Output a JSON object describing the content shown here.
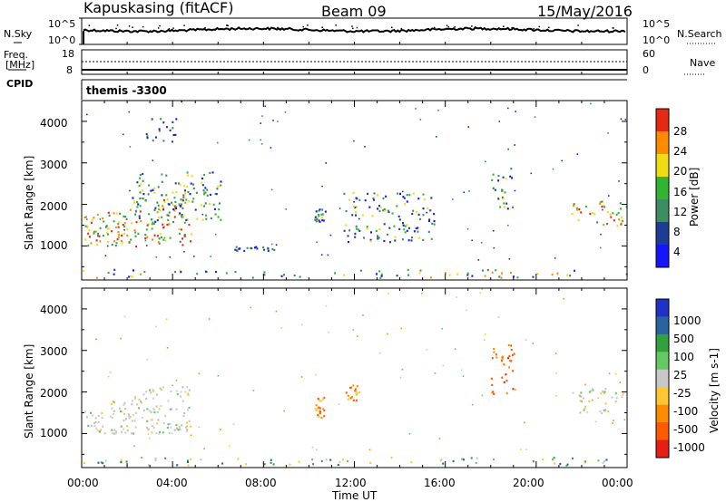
{
  "header": {
    "radar": "Kapuskasing (fitACF)",
    "beam": "Beam 09",
    "date": "15/May/2016"
  },
  "noise_panel": {
    "left_label": "N.Sky",
    "top_tick": "10^5",
    "bottom_tick": "10^0",
    "right_label": "N.Search"
  },
  "freq_panel": {
    "left_label_1": "Freq.",
    "left_label_2": "[MHz]",
    "left_top_tick": "18",
    "left_bottom_tick": "8",
    "right_label": "Nave",
    "right_top_tick": "60",
    "right_bottom_tick": "0"
  },
  "cpid": {
    "label": "CPID",
    "value": "themis -3300"
  },
  "chart_data": [
    {
      "type": "heatmap",
      "quantity": "Power",
      "ylabel": "Slant Range [km]",
      "ylim": [
        180,
        4500
      ],
      "yticks": [
        1000,
        2000,
        3000,
        4000
      ],
      "xlim_hours": [
        0,
        24
      ],
      "colorbar_label": "Power [dB]",
      "colorbar_ticks": [
        "4",
        "8",
        "12",
        "16",
        "20",
        "24",
        "28"
      ],
      "colorbar_colors": [
        "#1414ff",
        "#1e3c96",
        "#3c8c64",
        "#32b432",
        "#f0dc14",
        "#ff8c00",
        "#e62814"
      ],
      "echo_regions": [
        {
          "t": [
            0.1,
            4.8
          ],
          "r": [
            1000,
            2300
          ],
          "level": "strong"
        },
        {
          "t": [
            2.2,
            6.2
          ],
          "r": [
            1600,
            2800
          ],
          "level": "medium"
        },
        {
          "t": [
            2.8,
            4.2
          ],
          "r": [
            3500,
            4100
          ],
          "level": "weak"
        },
        {
          "t": [
            6.5,
            8.5
          ],
          "r": [
            900,
            1000
          ],
          "level": "weak"
        },
        {
          "t": [
            10.2,
            10.7
          ],
          "r": [
            1600,
            1900
          ],
          "level": "medium"
        },
        {
          "t": [
            11.5,
            15.5
          ],
          "r": [
            1100,
            2300
          ],
          "level": "medium"
        },
        {
          "t": [
            18.0,
            19.0
          ],
          "r": [
            1900,
            2900
          ],
          "level": "medium"
        },
        {
          "t": [
            21.5,
            24.0
          ],
          "r": [
            1500,
            2100
          ],
          "level": "strong"
        },
        {
          "t": [
            0.0,
            24.0
          ],
          "r": [
            250,
            450
          ],
          "level": "ground"
        }
      ]
    },
    {
      "type": "heatmap",
      "quantity": "Velocity",
      "ylabel": "Slant Range [km]",
      "ylim": [
        180,
        4500
      ],
      "yticks": [
        1000,
        2000,
        3000,
        4000
      ],
      "xlim_hours": [
        0,
        24
      ],
      "colorbar_label": "Velocity [m s-1]",
      "colorbar_ticks": [
        "1000",
        "500",
        "100",
        "25",
        "-25",
        "-100",
        "-500",
        "-1000"
      ],
      "colorbar_colors": [
        "#1e32c8",
        "#2864a0",
        "#32a03c",
        "#64c864",
        "#c8c8c8",
        "#ffc832",
        "#ff8c00",
        "#ff5a00",
        "#e61e14"
      ],
      "echo_regions": [
        {
          "t": [
            0.1,
            4.8
          ],
          "r": [
            1000,
            2300
          ],
          "level": "gray"
        },
        {
          "t": [
            10.2,
            10.7
          ],
          "r": [
            1400,
            1900
          ],
          "level": "orange"
        },
        {
          "t": [
            11.6,
            12.2
          ],
          "r": [
            1800,
            2200
          ],
          "level": "orange"
        },
        {
          "t": [
            18.0,
            19.0
          ],
          "r": [
            1900,
            3200
          ],
          "level": "red"
        },
        {
          "t": [
            21.5,
            24.0
          ],
          "r": [
            1500,
            2100
          ],
          "level": "gray"
        },
        {
          "t": [
            0.0,
            24.0
          ],
          "r": [
            250,
            450
          ],
          "level": "green"
        }
      ]
    }
  ],
  "x_axis": {
    "ticks": [
      "00:00",
      "04:00",
      "08:00",
      "12:00",
      "16:00",
      "20:00",
      "00:00"
    ],
    "label": "Time UT"
  }
}
